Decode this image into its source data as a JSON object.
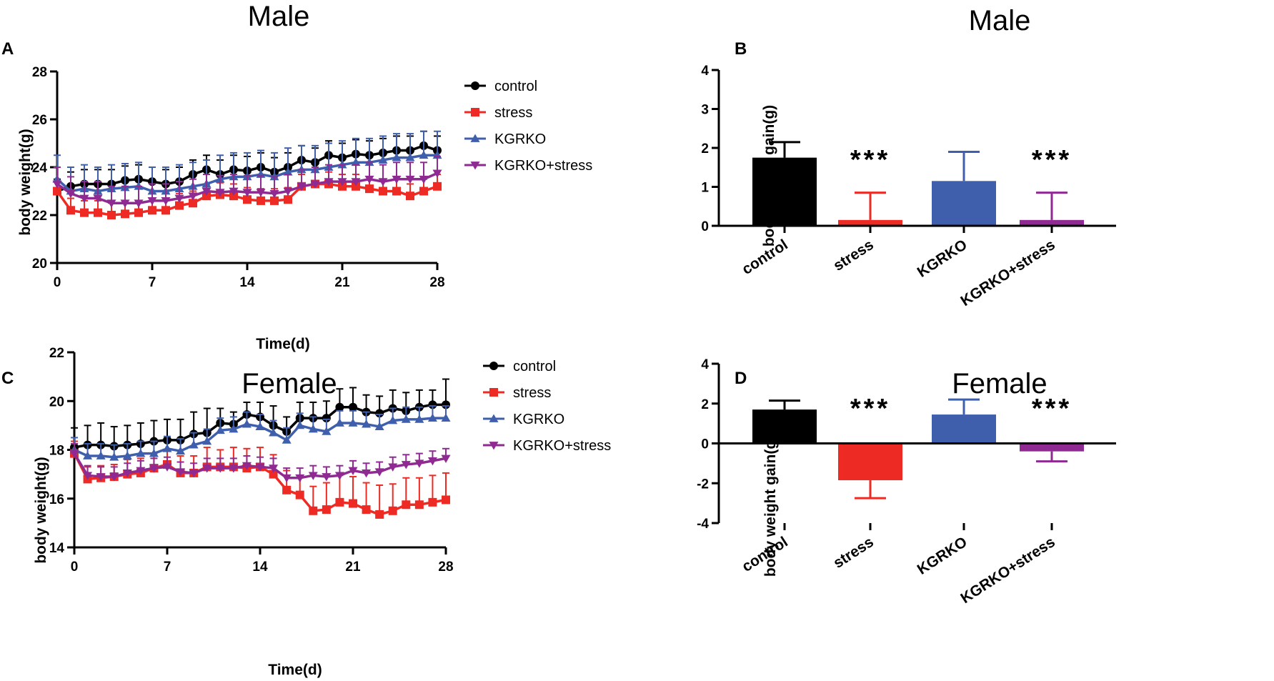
{
  "colors": {
    "control": "#000000",
    "stress": "#ee2a24",
    "KGRKO": "#3f5fad",
    "KGRKO+stress": "#8e2a92"
  },
  "chart_data": [
    {
      "id": "A",
      "panel": "A",
      "type": "line",
      "title": "Male",
      "xlabel": "Time(d)",
      "ylabel": "body weight(g)",
      "xlim": [
        0,
        28
      ],
      "ylim": [
        20,
        28
      ],
      "xticks": [
        0,
        7,
        14,
        21,
        28
      ],
      "yticks": [
        20,
        22,
        24,
        26,
        28
      ],
      "x": [
        0,
        1,
        2,
        3,
        4,
        5,
        6,
        7,
        8,
        9,
        10,
        11,
        12,
        13,
        14,
        15,
        16,
        17,
        18,
        19,
        20,
        21,
        22,
        23,
        24,
        25,
        26,
        27,
        28
      ],
      "series": [
        {
          "name": "control",
          "marker": "circle",
          "color": "#000000",
          "values": [
            23.0,
            23.2,
            23.3,
            23.3,
            23.3,
            23.45,
            23.5,
            23.4,
            23.3,
            23.4,
            23.7,
            23.9,
            23.7,
            23.9,
            23.85,
            24.0,
            23.8,
            24.0,
            24.3,
            24.2,
            24.5,
            24.4,
            24.55,
            24.5,
            24.6,
            24.7,
            24.7,
            24.9,
            24.7
          ],
          "errors": [
            0.5,
            0.6,
            0.6,
            0.6,
            0.6,
            0.6,
            0.6,
            0.6,
            0.6,
            0.6,
            0.6,
            0.6,
            0.6,
            0.6,
            0.6,
            0.6,
            0.6,
            0.6,
            0.6,
            0.6,
            0.6,
            0.6,
            0.6,
            0.6,
            0.6,
            0.6,
            0.6,
            0.6,
            0.6
          ]
        },
        {
          "name": "stress",
          "marker": "square",
          "color": "#ee2a24",
          "values": [
            23.0,
            22.2,
            22.1,
            22.1,
            22.0,
            22.05,
            22.1,
            22.2,
            22.2,
            22.4,
            22.5,
            22.8,
            22.85,
            22.8,
            22.65,
            22.6,
            22.6,
            22.65,
            23.2,
            23.3,
            23.3,
            23.2,
            23.2,
            23.1,
            23.0,
            23.0,
            22.8,
            23.0,
            23.2
          ],
          "errors": [
            0.4,
            0.5,
            0.5,
            0.5,
            0.5,
            0.5,
            0.5,
            0.5,
            0.5,
            0.5,
            0.5,
            0.5,
            0.5,
            0.5,
            0.5,
            0.5,
            0.5,
            0.5,
            0.5,
            0.5,
            0.5,
            0.5,
            0.5,
            0.5,
            0.5,
            0.5,
            0.5,
            0.5,
            0.5
          ]
        },
        {
          "name": "KGRKO",
          "marker": "triangle-up",
          "color": "#3f5fad",
          "values": [
            23.5,
            23.0,
            23.1,
            23.0,
            23.1,
            23.15,
            23.2,
            23.0,
            23.0,
            23.1,
            23.2,
            23.3,
            23.5,
            23.6,
            23.6,
            23.7,
            23.6,
            23.8,
            23.9,
            23.9,
            24.0,
            24.1,
            24.2,
            24.2,
            24.3,
            24.4,
            24.4,
            24.5,
            24.5
          ],
          "errors": [
            1.0,
            1.0,
            1.0,
            1.0,
            1.0,
            1.0,
            1.0,
            1.0,
            1.0,
            1.0,
            1.0,
            1.0,
            1.0,
            1.0,
            1.0,
            1.0,
            1.0,
            1.0,
            1.0,
            1.0,
            1.0,
            1.0,
            1.0,
            1.0,
            1.0,
            1.0,
            1.0,
            1.0,
            1.0
          ]
        },
        {
          "name": "KGRKO+stress",
          "marker": "triangle-down",
          "color": "#8e2a92",
          "values": [
            23.3,
            22.9,
            22.7,
            22.7,
            22.5,
            22.5,
            22.5,
            22.6,
            22.6,
            22.7,
            22.8,
            23.0,
            22.95,
            23.0,
            22.95,
            22.95,
            22.9,
            23.0,
            23.2,
            23.3,
            23.4,
            23.4,
            23.4,
            23.5,
            23.4,
            23.5,
            23.5,
            23.5,
            23.75
          ],
          "errors": [
            0.7,
            0.7,
            0.7,
            0.7,
            0.7,
            0.7,
            0.7,
            0.7,
            0.7,
            0.7,
            0.7,
            0.7,
            0.7,
            0.7,
            0.7,
            0.7,
            0.7,
            0.7,
            0.7,
            0.7,
            0.7,
            0.7,
            0.7,
            0.7,
            0.7,
            0.7,
            0.7,
            0.7,
            0.7
          ]
        }
      ],
      "legend": [
        "control",
        "stress",
        "KGRKO",
        "KGRKO+stress"
      ]
    },
    {
      "id": "B",
      "panel": "B",
      "type": "bar",
      "title": "Male",
      "xlabel": "",
      "ylabel": "body weight gain(g)",
      "ylim": [
        0,
        4
      ],
      "yticks": [
        0,
        1,
        2,
        3,
        4
      ],
      "categories": [
        "control",
        "stress",
        "KGRKO",
        "KGRKO+stress"
      ],
      "values": [
        1.75,
        0.15,
        1.15,
        0.15
      ],
      "errors": [
        0.4,
        0.7,
        0.75,
        0.7
      ],
      "annotations": [
        "",
        "***",
        "",
        "***"
      ]
    },
    {
      "id": "C",
      "panel": "C",
      "type": "line",
      "title": "Female",
      "xlabel": "Time(d)",
      "ylabel": "body weight(g)",
      "xlim": [
        0,
        28
      ],
      "ylim": [
        14,
        22
      ],
      "xticks": [
        0,
        7,
        14,
        21,
        28
      ],
      "yticks": [
        14,
        16,
        18,
        20,
        22
      ],
      "x": [
        0,
        1,
        2,
        3,
        4,
        5,
        6,
        7,
        8,
        9,
        10,
        11,
        12,
        13,
        14,
        15,
        16,
        17,
        18,
        19,
        20,
        21,
        22,
        23,
        24,
        25,
        26,
        27,
        28
      ],
      "series": [
        {
          "name": "control",
          "marker": "circle",
          "color": "#000000",
          "values": [
            18.1,
            18.2,
            18.2,
            18.15,
            18.2,
            18.25,
            18.35,
            18.4,
            18.4,
            18.65,
            18.7,
            19.1,
            19.05,
            19.45,
            19.35,
            19.0,
            18.75,
            19.3,
            19.3,
            19.3,
            19.75,
            19.75,
            19.55,
            19.5,
            19.7,
            19.6,
            19.75,
            19.85,
            19.85
          ],
          "errors": [
            0.8,
            0.8,
            0.9,
            0.8,
            0.8,
            0.85,
            0.85,
            0.85,
            0.85,
            0.9,
            1.0,
            0.6,
            0.5,
            0.5,
            0.6,
            0.8,
            0.6,
            0.65,
            0.65,
            0.7,
            0.75,
            0.8,
            0.7,
            0.7,
            0.75,
            0.75,
            0.7,
            0.6,
            1.05
          ]
        },
        {
          "name": "stress",
          "marker": "square",
          "color": "#ee2a24",
          "values": [
            17.85,
            16.8,
            16.85,
            16.9,
            17.0,
            17.05,
            17.25,
            17.4,
            17.05,
            17.05,
            17.3,
            17.3,
            17.3,
            17.25,
            17.3,
            17.0,
            16.35,
            16.15,
            15.5,
            15.55,
            15.85,
            15.8,
            15.55,
            15.35,
            15.5,
            15.75,
            15.75,
            15.85,
            15.95
          ],
          "errors": [
            0.5,
            0.5,
            0.5,
            0.5,
            0.6,
            0.6,
            0.6,
            0.6,
            0.7,
            0.7,
            0.8,
            0.7,
            0.8,
            0.8,
            0.8,
            0.8,
            0.8,
            0.8,
            1.0,
            1.1,
            1.1,
            1.1,
            1.1,
            1.2,
            1.1,
            1.1,
            1.1,
            1.1,
            1.1
          ]
        },
        {
          "name": "KGRKO",
          "marker": "triangle-up",
          "color": "#3f5fad",
          "values": [
            18.0,
            17.75,
            17.75,
            17.7,
            17.75,
            17.85,
            17.85,
            18.05,
            17.95,
            18.2,
            18.35,
            18.8,
            18.85,
            19.05,
            18.95,
            18.7,
            18.4,
            19.0,
            18.85,
            18.75,
            19.1,
            19.1,
            19.05,
            18.95,
            19.2,
            19.25,
            19.25,
            19.3,
            19.3
          ],
          "errors": [
            0.5,
            0.5,
            0.5,
            0.5,
            0.5,
            0.5,
            0.5,
            0.5,
            0.5,
            0.5,
            0.5,
            0.5,
            0.5,
            0.5,
            0.5,
            0.5,
            0.5,
            0.5,
            0.5,
            0.5,
            0.5,
            0.5,
            0.5,
            0.5,
            0.5,
            0.5,
            0.5,
            0.5,
            0.5
          ]
        },
        {
          "name": "KGRKO+stress",
          "marker": "triangle-down",
          "color": "#8e2a92",
          "values": [
            17.85,
            16.95,
            16.9,
            16.9,
            17.05,
            17.15,
            17.25,
            17.3,
            17.1,
            17.05,
            17.25,
            17.25,
            17.25,
            17.35,
            17.3,
            17.25,
            16.85,
            16.85,
            16.95,
            16.9,
            16.95,
            17.15,
            17.05,
            17.1,
            17.3,
            17.4,
            17.45,
            17.55,
            17.65
          ],
          "errors": [
            0.4,
            0.4,
            0.4,
            0.4,
            0.4,
            0.4,
            0.4,
            0.4,
            0.4,
            0.4,
            0.4,
            0.4,
            0.4,
            0.4,
            0.4,
            0.4,
            0.4,
            0.4,
            0.4,
            0.4,
            0.4,
            0.4,
            0.4,
            0.4,
            0.4,
            0.4,
            0.4,
            0.4,
            0.4
          ]
        }
      ],
      "legend": [
        "control",
        "stress",
        "KGRKO",
        "KGRKO+stress"
      ]
    },
    {
      "id": "D",
      "panel": "D",
      "type": "bar",
      "title": "Female",
      "xlabel": "",
      "ylabel": "body weight gain(g)",
      "ylim": [
        -4,
        4
      ],
      "yticks": [
        -4,
        -2,
        0,
        2,
        4
      ],
      "categories": [
        "control",
        "stress",
        "KGRKO",
        "KGRKO+stress"
      ],
      "values": [
        1.7,
        -1.85,
        1.45,
        -0.4
      ],
      "errors": [
        0.45,
        0.9,
        0.75,
        0.5
      ],
      "annotations": [
        "",
        "***",
        "",
        "***"
      ]
    }
  ]
}
